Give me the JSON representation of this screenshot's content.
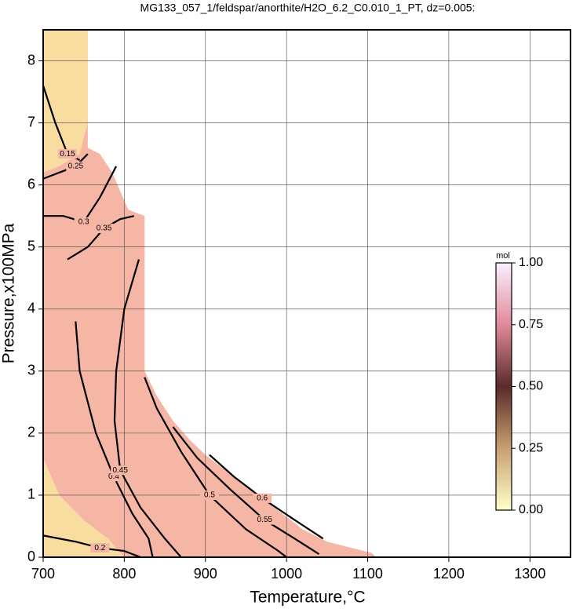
{
  "chart_data": {
    "type": "contour",
    "title": "MG133_057_1/feldspar/anorthite/H2O_6.2_C0.010_1_PT, dz=0.005:",
    "x_label": "Temperature,°C",
    "y_label": "Pressure,x100MPa",
    "xlim": [
      700,
      1350
    ],
    "xticks": [
      700,
      800,
      900,
      1000,
      1100,
      1200,
      1300
    ],
    "ylim": [
      0,
      8.5
    ],
    "yticks": [
      0,
      1,
      2,
      3,
      4,
      5,
      6,
      7,
      8
    ],
    "grid": true,
    "fields": [
      {
        "color": "#f6b6a6",
        "x": [
          700,
          700,
          755,
          755,
          770,
          785,
          795,
          805,
          825,
          825,
          840,
          860,
          880,
          900,
          930,
          960,
          990,
          1020,
          1050,
          1080,
          1105,
          1110
        ],
        "y": [
          0,
          8.5,
          8.5,
          6.6,
          6.5,
          6.2,
          5.9,
          5.6,
          5.5,
          3.0,
          2.6,
          2.2,
          1.9,
          1.65,
          1.35,
          1.05,
          0.75,
          0.45,
          0.25,
          0.15,
          0.07,
          0
        ]
      },
      {
        "color": "#f8dca0",
        "x": [
          700,
          755,
          755,
          745,
          720,
          700
        ],
        "y": [
          8.5,
          8.5,
          7.0,
          6.5,
          6.3,
          6.2
        ]
      },
      {
        "color": "#f8dca0",
        "x": [
          700,
          700,
          720,
          750,
          780,
          800
        ],
        "y": [
          0,
          1.6,
          1.0,
          0.6,
          0.3,
          0
        ]
      }
    ],
    "contours": [
      {
        "level": 0.15,
        "x": [
          700,
          715,
          730,
          745
        ],
        "y": [
          7.6,
          7.0,
          6.5,
          6.4
        ]
      },
      {
        "level": 0.2,
        "x": [
          700,
          740,
          770,
          800,
          820
        ],
        "y": [
          0.35,
          0.25,
          0.15,
          0.1,
          0
        ]
      },
      {
        "level": 0.25,
        "x": [
          700,
          720,
          740,
          755
        ],
        "y": [
          6.1,
          6.2,
          6.3,
          6.5
        ]
      },
      {
        "level": 0.3,
        "x": [
          700,
          725,
          750,
          770,
          790
        ],
        "y": [
          5.5,
          5.5,
          5.4,
          5.8,
          6.3
        ]
      },
      {
        "level": 0.35,
        "x": [
          730,
          755,
          775,
          795,
          812
        ],
        "y": [
          4.8,
          5.0,
          5.3,
          5.45,
          5.5
        ]
      },
      {
        "level": 0.4,
        "x": [
          740,
          745,
          765,
          787,
          810,
          830,
          835
        ],
        "y": [
          3.8,
          3.0,
          2.0,
          1.3,
          0.7,
          0.3,
          0
        ]
      },
      {
        "level": 0.45,
        "x": [
          818,
          800,
          790,
          788,
          795,
          820,
          850,
          870
        ],
        "y": [
          4.8,
          4.0,
          3.0,
          2.2,
          1.4,
          0.8,
          0.3,
          0
        ]
      },
      {
        "level": 0.5,
        "x": [
          825,
          840,
          870,
          905,
          950,
          990,
          1000
        ],
        "y": [
          2.9,
          2.4,
          1.7,
          1.0,
          0.45,
          0.1,
          0
        ]
      },
      {
        "level": 0.55,
        "x": [
          860,
          890,
          930,
          973,
          1010,
          1040
        ],
        "y": [
          2.1,
          1.6,
          1.1,
          0.6,
          0.3,
          0.05
        ]
      },
      {
        "level": 0.6,
        "x": [
          905,
          935,
          970,
          1010,
          1045
        ],
        "y": [
          1.65,
          1.3,
          0.95,
          0.6,
          0.3
        ]
      }
    ],
    "colorbar": {
      "label": "mol",
      "colormap": [
        "#ffffc8",
        "#c8a070",
        "#5a2a2a",
        "#e08a9a",
        "#f8f0ff"
      ],
      "lim": [
        0,
        1
      ],
      "ticks": [
        {
          "value": 0,
          "label": "0.00"
        },
        {
          "value": 0.25,
          "label": "0.25"
        },
        {
          "value": 0.5,
          "label": "0.50"
        },
        {
          "value": 0.75,
          "label": "0.75"
        },
        {
          "value": 1,
          "label": "1.00"
        }
      ]
    }
  }
}
